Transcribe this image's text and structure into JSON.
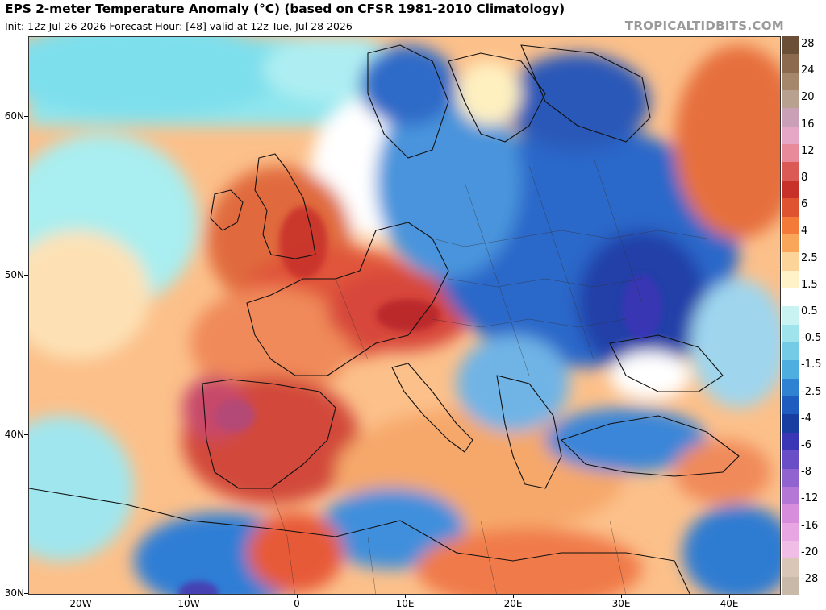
{
  "title": "EPS 2-meter Temperature Anomaly (°C) (based on CFSR 1981-2010 Climatology)",
  "subtitle": "Init: 12z Jul 26 2026   Forecast Hour: [48]   valid at 12z Tue, Jul 28 2026",
  "brand": "TROPICALTIDBITS.COM",
  "latitude_labels": [
    "60N",
    "50N",
    "40N",
    "30N"
  ],
  "longitude_labels": [
    "20W",
    "10W",
    "0",
    "10E",
    "20E",
    "30E",
    "40E"
  ],
  "colorbar": {
    "labels": [
      "28",
      "24",
      "20",
      "16",
      "12",
      "8",
      "6",
      "4",
      "2.5",
      "1.5",
      "0.5",
      "-0.5",
      "-1.5",
      "-2.5",
      "-4",
      "-6",
      "-8",
      "-12",
      "-16",
      "-20",
      "-28"
    ],
    "colors": [
      "#6b4f36",
      "#8c6a4d",
      "#a5876c",
      "#b9a190",
      "#c9a0b6",
      "#e6a6c6",
      "#e98a9a",
      "#dc5a55",
      "#c8302a",
      "#e05330",
      "#f47a3a",
      "#f9a55a",
      "#fcd49a",
      "#fff2c8",
      "#ffffff",
      "#c9f2f2",
      "#9fe4ec",
      "#74cbe6",
      "#4eaee0",
      "#2f82d2",
      "#1f5cc0",
      "#173ea0",
      "#3a36b5",
      "#6a4ec8",
      "#9063d0",
      "#b577d6",
      "#d88ddc",
      "#e8a6e2",
      "#efbde6",
      "#d9c6b6",
      "#c8b9a8"
    ]
  }
}
